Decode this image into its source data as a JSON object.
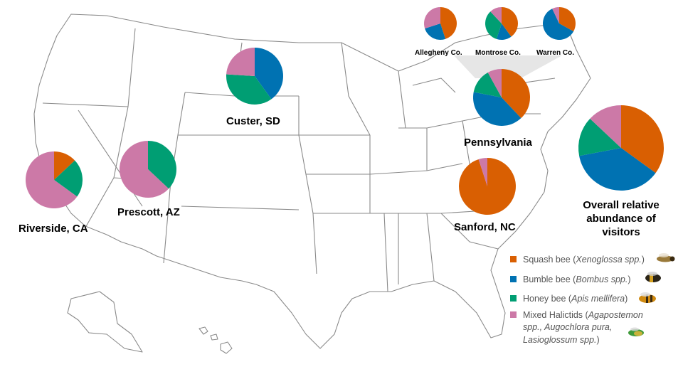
{
  "colors": {
    "squash": "#d95f02",
    "bumble": "#0072b2",
    "honey": "#009e73",
    "halictid": "#cc79a7",
    "map_stroke": "#8a8a8a",
    "funnel": "#e6e6e6"
  },
  "legend": [
    {
      "key": "squash",
      "common": "Squash bee (",
      "sci": "Xenoglossa spp.",
      "tail": ")",
      "icon": "squash-bee-icon"
    },
    {
      "key": "bumble",
      "common": "Bumble bee (",
      "sci": "Bombus spp.",
      "tail": ")",
      "icon": "bumble-bee-icon"
    },
    {
      "key": "honey",
      "common": "Honey bee (",
      "sci": "Apis mellifera",
      "tail": ")",
      "icon": "honey-bee-icon"
    },
    {
      "key": "halictid",
      "line1_common": "Mixed Halictids (",
      "line1_sci": "Agapostemon",
      "line2_sci": "spp., Augochlora pura,",
      "line3_sci": "Lasioglossum spp.",
      "line3_tail": ")",
      "icon": "sweat-bee-icon"
    }
  ],
  "chart_data": {
    "type": "pie",
    "categories": [
      "Squash bee",
      "Bumble bee",
      "Honey bee",
      "Mixed Halictids"
    ],
    "sites": [
      {
        "name": "Riverside, CA",
        "values": [
          13,
          0,
          22,
          65
        ]
      },
      {
        "name": "Prescott, AZ",
        "values": [
          0,
          0,
          37,
          63
        ]
      },
      {
        "name": "Custer, SD",
        "values": [
          0,
          40,
          36,
          24
        ]
      },
      {
        "name": "Pennsylvania",
        "values": [
          38,
          40,
          14,
          8
        ]
      },
      {
        "name": "Sanford, NC",
        "values": [
          95,
          0,
          0,
          5
        ]
      },
      {
        "name": "Allegheny Co.",
        "values": [
          45,
          25,
          0,
          30
        ]
      },
      {
        "name": "Montrose Co.",
        "values": [
          40,
          15,
          33,
          12
        ]
      },
      {
        "name": "Warren Co.",
        "values": [
          33,
          60,
          0,
          7
        ]
      }
    ],
    "overall": {
      "name": "Overall relative abundance of visitors",
      "line1": "Overall relative",
      "line2": "abundance of",
      "line3": "visitors",
      "values": [
        35,
        37,
        15,
        13
      ]
    }
  }
}
